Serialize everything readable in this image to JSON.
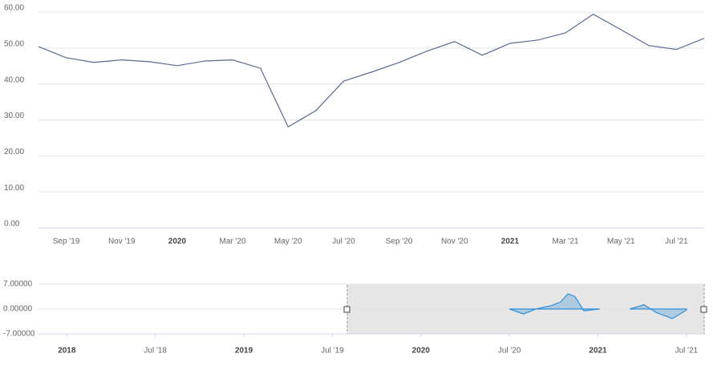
{
  "chart_data": [
    {
      "type": "line",
      "color": "#5b6b8c",
      "grid": true,
      "categories": [
        null,
        "Sep '19",
        null,
        "Nov '19",
        null,
        "2020",
        null,
        "Mar '20",
        null,
        "May '20",
        null,
        "Jul '20",
        null,
        "Sep '20",
        null,
        "Nov '20",
        null,
        "2021",
        null,
        "Mar '21",
        null,
        "May '21",
        null,
        "Jul '21",
        null
      ],
      "values": [
        50.4,
        47.3,
        46.0,
        46.7,
        46.2,
        45.1,
        46.4,
        46.7,
        44.4,
        28.1,
        32.6,
        40.8,
        43.3,
        46.0,
        49.1,
        51.8,
        48.0,
        51.3,
        52.2,
        54.2,
        59.4,
        55.1,
        50.7,
        49.6,
        52.7
      ],
      "ylim": [
        0,
        60
      ],
      "yticks": [
        {
          "value": 0,
          "label": "0.00"
        },
        {
          "value": 10,
          "label": "10.00"
        },
        {
          "value": 20,
          "label": "20.00"
        },
        {
          "value": 30,
          "label": "30.00"
        },
        {
          "value": 40,
          "label": "40.00"
        },
        {
          "value": 50,
          "label": "50.00"
        },
        {
          "value": 60,
          "label": "60.00"
        }
      ]
    },
    {
      "type": "area",
      "color": "#2f8fd8",
      "grid": true,
      "x": [
        2020.5,
        2020.58,
        2020.65,
        2020.74,
        2020.79,
        2020.83,
        2020.87,
        2020.92,
        2021.01,
        2021.1,
        2021.18,
        2021.26,
        2021.33,
        2021.42,
        2021.5
      ],
      "values": [
        0,
        -1.4,
        0,
        1,
        2,
        4.3,
        3.5,
        -0.5,
        0,
        null,
        0,
        1.2,
        -1,
        -2.7,
        -0.3
      ],
      "xlim": [
        2017.84,
        2021.6
      ],
      "xticks": [
        {
          "value": 2018,
          "label": "2018"
        },
        {
          "value": 2018.5,
          "label": "Jul '18"
        },
        {
          "value": 2019,
          "label": "2019"
        },
        {
          "value": 2019.5,
          "label": "Jul '19"
        },
        {
          "value": 2020,
          "label": "2020"
        },
        {
          "value": 2020.5,
          "label": "Jul '20"
        },
        {
          "value": 2021,
          "label": "2021"
        },
        {
          "value": 2021.5,
          "label": "Jul '21"
        }
      ],
      "ylim": [
        -7,
        7
      ],
      "yticks": [
        {
          "value": -7,
          "label": "-7.00000"
        },
        {
          "value": 0,
          "label": "0.00000"
        },
        {
          "value": 7,
          "label": "7.00000"
        }
      ]
    }
  ]
}
